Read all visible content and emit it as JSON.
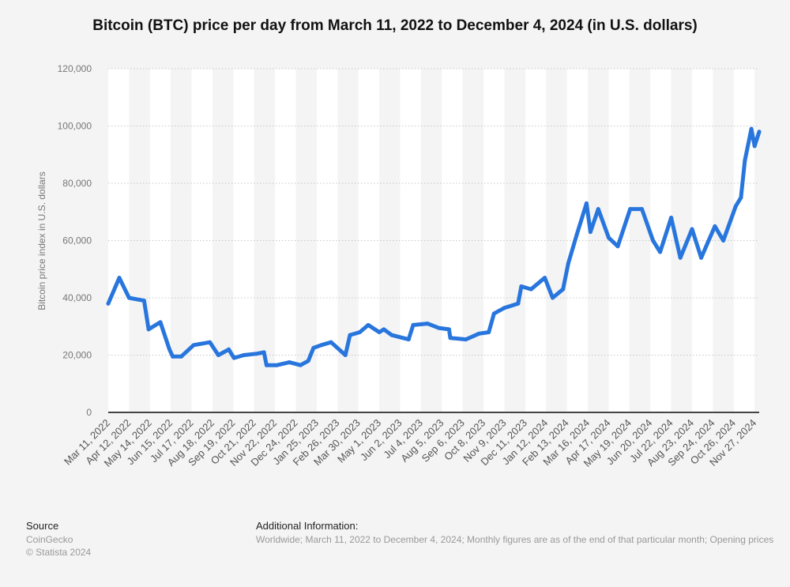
{
  "chart_data": {
    "type": "line",
    "title": "Bitcoin (BTC) price per day from March 11, 2022 to December 4, 2024 (in U.S. dollars)",
    "xlabel": "",
    "ylabel": "Bitcoin price index in U.S. dollars",
    "ylim": [
      0,
      120000
    ],
    "xlim": [
      "2022-03-11",
      "2024-12-04"
    ],
    "grid": true,
    "yticks": [
      "0",
      "20,000",
      "40,000",
      "60,000",
      "80,000",
      "100,000",
      "120,000"
    ],
    "xticks": [
      "Mar 11, 2022",
      "Apr 12, 2022",
      "May 14, 2022",
      "Jun 15, 2022",
      "Jul 17, 2022",
      "Aug 18, 2022",
      "Sep 19, 2022",
      "Oct 21, 2022",
      "Nov 22, 2022",
      "Dec 24, 2022",
      "Jan 25, 2023",
      "Feb 26, 2023",
      "Mar 30, 2023",
      "May 1, 2023",
      "Jun 2, 2023",
      "Jul 4, 2023",
      "Aug 5, 2023",
      "Sep 6, 2023",
      "Oct 8, 2023",
      "Nov 9, 2023",
      "Dec 11, 2023",
      "Jan 12, 2024",
      "Feb 13, 2024",
      "Mar 16, 2024",
      "Apr 17, 2024",
      "May 19, 2024",
      "Jun 20, 2024",
      "Jul 22, 2024",
      "Aug 23, 2024",
      "Sep 24, 2024",
      "Oct 26, 2024",
      "Nov 27, 2024"
    ],
    "line_color": "#2876dd",
    "series": [
      {
        "x": [
          "2022-03-11",
          "2022-03-28",
          "2022-04-12",
          "2022-05-05",
          "2022-05-12",
          "2022-05-30",
          "2022-06-13",
          "2022-06-18",
          "2022-07-01",
          "2022-07-20",
          "2022-08-14",
          "2022-08-27",
          "2022-09-12",
          "2022-09-20",
          "2022-10-05",
          "2022-10-25",
          "2022-11-05",
          "2022-11-09",
          "2022-11-25",
          "2022-12-14",
          "2022-12-31",
          "2023-01-12",
          "2023-01-20",
          "2023-02-01",
          "2023-02-16",
          "2023-03-10",
          "2023-03-17",
          "2023-04-01",
          "2023-04-14",
          "2023-05-01",
          "2023-05-08",
          "2023-05-20",
          "2023-06-15",
          "2023-06-22",
          "2023-07-14",
          "2023-07-31",
          "2023-08-16",
          "2023-08-18",
          "2023-09-11",
          "2023-10-01",
          "2023-10-16",
          "2023-10-24",
          "2023-11-09",
          "2023-11-30",
          "2023-12-05",
          "2023-12-20",
          "2024-01-10",
          "2024-01-22",
          "2024-02-07",
          "2024-02-15",
          "2024-02-28",
          "2024-03-14",
          "2024-03-20",
          "2024-04-01",
          "2024-04-17",
          "2024-05-01",
          "2024-05-20",
          "2024-06-07",
          "2024-06-24",
          "2024-07-05",
          "2024-07-22",
          "2024-08-05",
          "2024-08-23",
          "2024-09-06",
          "2024-09-27",
          "2024-10-10",
          "2024-10-29",
          "2024-11-06",
          "2024-11-12",
          "2024-11-22",
          "2024-11-27",
          "2024-12-04"
        ],
        "y": [
          38000,
          47000,
          40000,
          39000,
          29000,
          31500,
          22000,
          19500,
          19500,
          23500,
          24500,
          20000,
          22000,
          19000,
          20000,
          20500,
          21000,
          16500,
          16500,
          17500,
          16500,
          18000,
          22500,
          23500,
          24500,
          20000,
          27000,
          28000,
          30500,
          28000,
          29000,
          27000,
          25500,
          30500,
          31000,
          29500,
          29000,
          26000,
          25500,
          27500,
          28000,
          34500,
          36500,
          38000,
          44000,
          43000,
          47000,
          40000,
          43000,
          52000,
          62000,
          73000,
          63000,
          71000,
          61000,
          58000,
          71000,
          71000,
          60000,
          56000,
          68000,
          54000,
          64000,
          54000,
          65000,
          60000,
          72000,
          75000,
          88000,
          99000,
          93000,
          98000
        ]
      }
    ]
  },
  "footer": {
    "source_heading": "Source",
    "source_name": "CoinGecko",
    "copyright": "© Statista 2024",
    "info_heading": "Additional Information:",
    "info_text": "Worldwide; March 11, 2022 to December 4, 2024; Monthly figures are as of the end of that particular month; Opening prices"
  }
}
